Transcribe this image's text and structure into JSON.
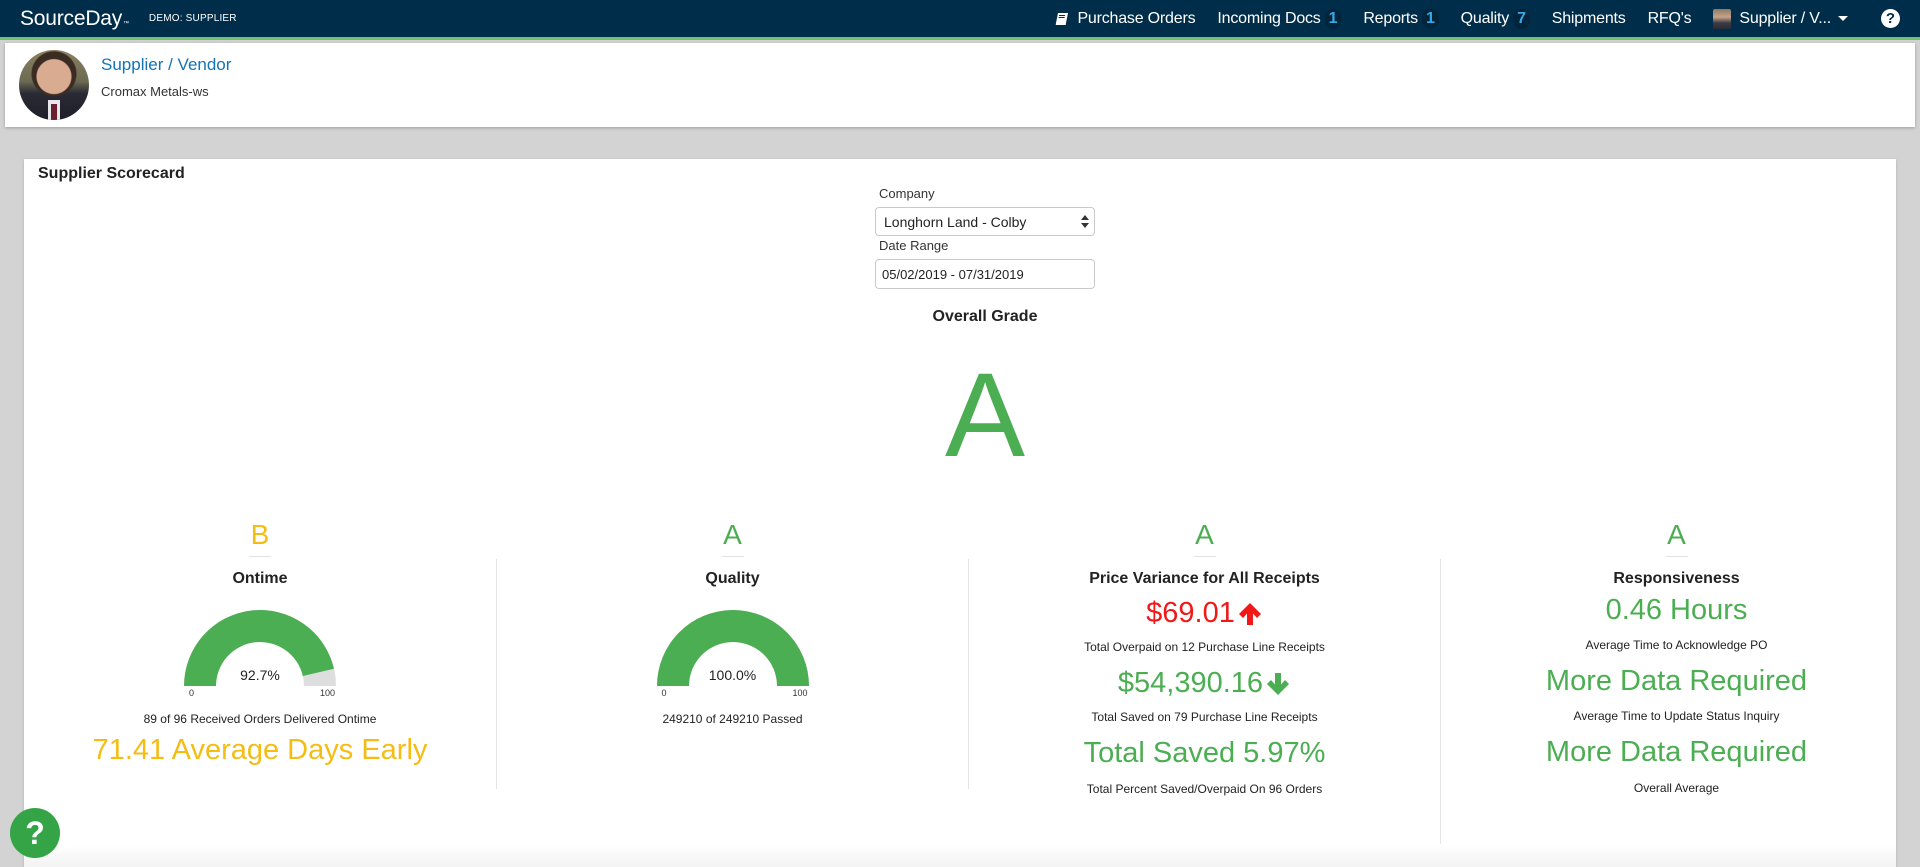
{
  "nav": {
    "brand": "SourceDay",
    "brand_tm": "™",
    "demo_label": "DEMO: SUPPLIER",
    "items": [
      {
        "label": "Purchase Orders",
        "icon": "book-icon"
      },
      {
        "label": "Incoming Docs",
        "badge": "1"
      },
      {
        "label": "Reports",
        "badge": "1"
      },
      {
        "label": "Quality",
        "badge": "7"
      },
      {
        "label": "Shipments"
      },
      {
        "label": "RFQ's"
      }
    ],
    "user_menu": "Supplier / V...",
    "help_icon": "?"
  },
  "profile": {
    "name": "Supplier / Vendor",
    "company": "Cromax Metals-ws"
  },
  "scorecard": {
    "title": "Supplier Scorecard",
    "company_label": "Company",
    "company_value": "Longhorn Land - Colby",
    "date_label": "Date Range",
    "date_value": "05/02/2019 - 07/31/2019",
    "overall_label": "Overall Grade",
    "overall_grade": "A"
  },
  "colors": {
    "green": "#4cae52",
    "yellow": "#f5bd14",
    "red": "#f21818",
    "nav_bg": "#002e4a",
    "nav_accent": "#6cc174",
    "badge": "#3aa8e8"
  },
  "metrics": {
    "ontime": {
      "grade": "B",
      "title": "Ontime",
      "gauge_value": "92.7%",
      "gauge_percent": 92.7,
      "gauge_min": "0",
      "gauge_max": "100",
      "detail": "89 of 96 Received Orders Delivered Ontime",
      "highlight": "71.41 Average Days Early"
    },
    "quality": {
      "grade": "A",
      "title": "Quality",
      "gauge_value": "100.0%",
      "gauge_percent": 100,
      "gauge_min": "0",
      "gauge_max": "100",
      "detail": "249210 of 249210 Passed"
    },
    "price_variance": {
      "grade": "A",
      "title": "Price Variance for All Receipts",
      "overpaid_value": "$69.01",
      "overpaid_label": "Total Overpaid on 12 Purchase Line Receipts",
      "saved_value": "$54,390.16",
      "saved_label": "Total Saved on 79 Purchase Line Receipts",
      "percent_value": "Total Saved 5.97%",
      "percent_label": "Total Percent Saved/Overpaid On 96 Orders"
    },
    "responsiveness": {
      "grade": "A",
      "title": "Responsiveness",
      "ack_value": "0.46 Hours",
      "ack_label": "Average Time to Acknowledge PO",
      "status_value": "More Data Required",
      "status_label": "Average Time to Update Status Inquiry",
      "overall_value": "More Data Required",
      "overall_label": "Overall Average"
    }
  },
  "help_fab": "?"
}
